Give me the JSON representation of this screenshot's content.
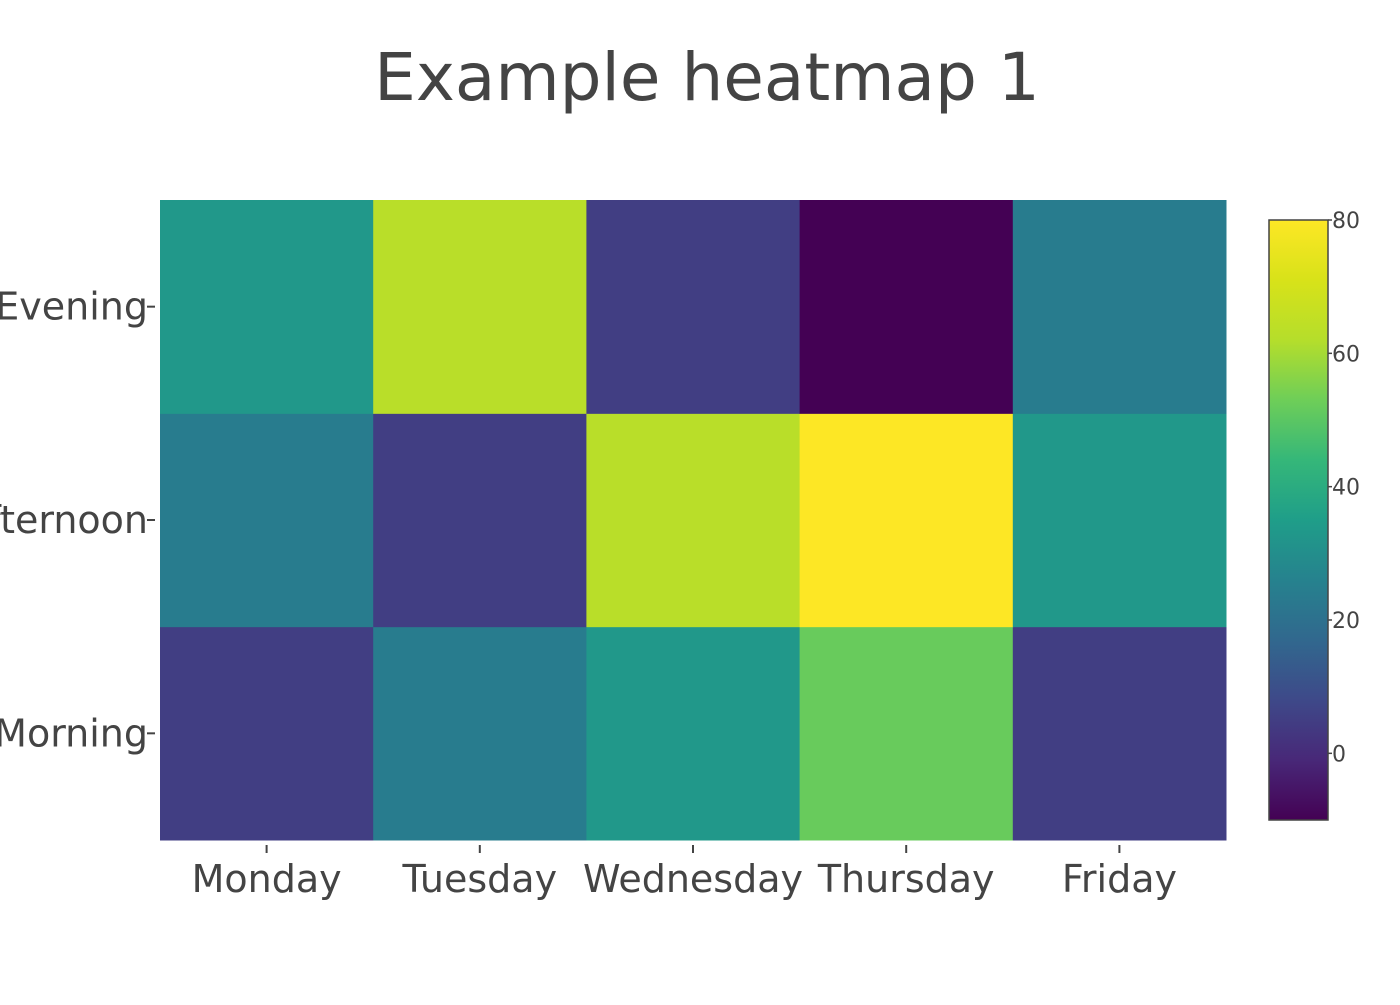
{
  "chart_data": {
    "type": "heatmap",
    "title": "Example heatmap 1",
    "x": [
      "Monday",
      "Tuesday",
      "Wednesday",
      "Thursday",
      "Friday"
    ],
    "y": [
      "Morning",
      "Afternoon",
      "Evening"
    ],
    "z": [
      [
        5,
        24,
        33,
        52,
        5
      ],
      [
        24,
        5,
        63,
        83,
        33
      ],
      [
        33,
        63,
        5,
        -10,
        24
      ]
    ],
    "colorscale": "Viridis",
    "zrange": [
      -10,
      80
    ],
    "colorbar_ticks": [
      0,
      20,
      40,
      60,
      80
    ],
    "xlabel": "",
    "ylabel": ""
  }
}
